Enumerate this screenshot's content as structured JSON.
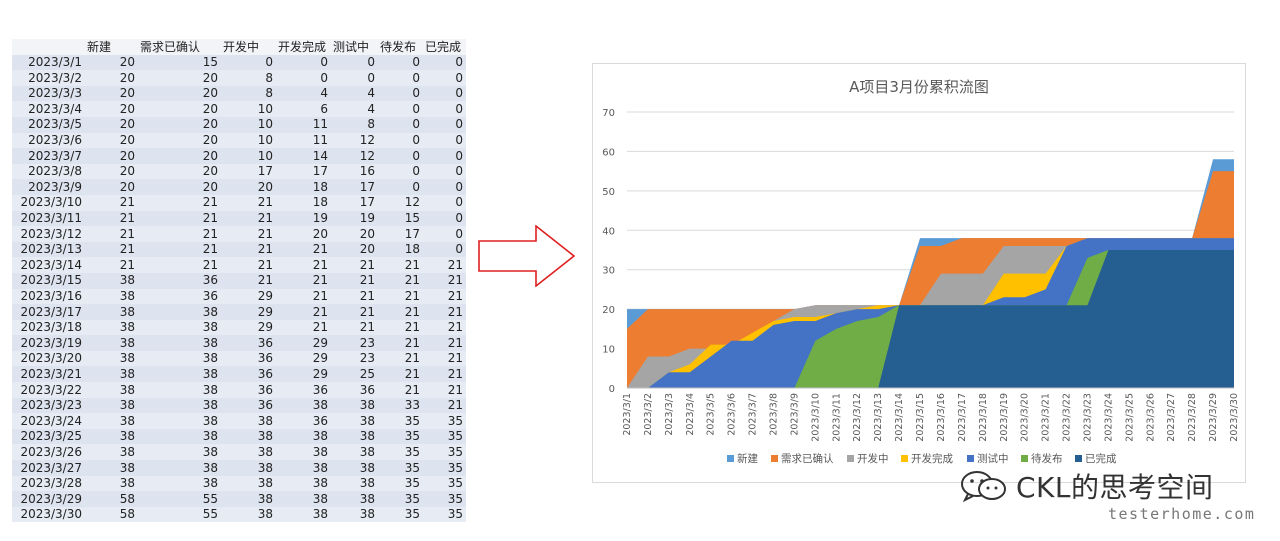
{
  "table": {
    "headers": [
      "",
      "新建",
      "需求已确认",
      "开发中",
      "开发完成",
      "测试中",
      "待发布",
      "已完成"
    ],
    "rows": [
      [
        "2023/3/1",
        "20",
        "15",
        "0",
        "0",
        "0",
        "0",
        "0"
      ],
      [
        "2023/3/2",
        "20",
        "20",
        "8",
        "0",
        "0",
        "0",
        "0"
      ],
      [
        "2023/3/3",
        "20",
        "20",
        "8",
        "4",
        "4",
        "0",
        "0"
      ],
      [
        "2023/3/4",
        "20",
        "20",
        "10",
        "6",
        "4",
        "0",
        "0"
      ],
      [
        "2023/3/5",
        "20",
        "20",
        "10",
        "11",
        "8",
        "0",
        "0"
      ],
      [
        "2023/3/6",
        "20",
        "20",
        "10",
        "11",
        "12",
        "0",
        "0"
      ],
      [
        "2023/3/7",
        "20",
        "20",
        "10",
        "14",
        "12",
        "0",
        "0"
      ],
      [
        "2023/3/8",
        "20",
        "20",
        "17",
        "17",
        "16",
        "0",
        "0"
      ],
      [
        "2023/3/9",
        "20",
        "20",
        "20",
        "18",
        "17",
        "0",
        "0"
      ],
      [
        "2023/3/10",
        "21",
        "21",
        "21",
        "18",
        "17",
        "12",
        "0"
      ],
      [
        "2023/3/11",
        "21",
        "21",
        "21",
        "19",
        "19",
        "15",
        "0"
      ],
      [
        "2023/3/12",
        "21",
        "21",
        "21",
        "20",
        "20",
        "17",
        "0"
      ],
      [
        "2023/3/13",
        "21",
        "21",
        "21",
        "21",
        "20",
        "18",
        "0"
      ],
      [
        "2023/3/14",
        "21",
        "21",
        "21",
        "21",
        "21",
        "21",
        "21"
      ],
      [
        "2023/3/15",
        "38",
        "36",
        "21",
        "21",
        "21",
        "21",
        "21"
      ],
      [
        "2023/3/16",
        "38",
        "36",
        "29",
        "21",
        "21",
        "21",
        "21"
      ],
      [
        "2023/3/17",
        "38",
        "38",
        "29",
        "21",
        "21",
        "21",
        "21"
      ],
      [
        "2023/3/18",
        "38",
        "38",
        "29",
        "21",
        "21",
        "21",
        "21"
      ],
      [
        "2023/3/19",
        "38",
        "38",
        "36",
        "29",
        "23",
        "21",
        "21"
      ],
      [
        "2023/3/20",
        "38",
        "38",
        "36",
        "29",
        "23",
        "21",
        "21"
      ],
      [
        "2023/3/21",
        "38",
        "38",
        "36",
        "29",
        "25",
        "21",
        "21"
      ],
      [
        "2023/3/22",
        "38",
        "38",
        "36",
        "36",
        "36",
        "21",
        "21"
      ],
      [
        "2023/3/23",
        "38",
        "38",
        "36",
        "38",
        "38",
        "33",
        "21"
      ],
      [
        "2023/3/24",
        "38",
        "38",
        "38",
        "36",
        "38",
        "35",
        "35"
      ],
      [
        "2023/3/25",
        "38",
        "38",
        "38",
        "38",
        "38",
        "35",
        "35"
      ],
      [
        "2023/3/26",
        "38",
        "38",
        "38",
        "38",
        "38",
        "35",
        "35"
      ],
      [
        "2023/3/27",
        "38",
        "38",
        "38",
        "38",
        "38",
        "35",
        "35"
      ],
      [
        "2023/3/28",
        "38",
        "38",
        "38",
        "38",
        "38",
        "35",
        "35"
      ],
      [
        "2023/3/29",
        "58",
        "55",
        "38",
        "38",
        "38",
        "35",
        "35"
      ],
      [
        "2023/3/30",
        "58",
        "55",
        "38",
        "38",
        "38",
        "35",
        "35"
      ]
    ]
  },
  "chart_data": {
    "type": "area",
    "title": "A项目3月份累积流图",
    "xlabel": "",
    "ylabel": "",
    "ylim": [
      0,
      70
    ],
    "yticks": [
      0,
      10,
      20,
      30,
      40,
      50,
      60,
      70
    ],
    "grid": true,
    "legend_position": "bottom",
    "categories": [
      "2023/3/1",
      "2023/3/2",
      "2023/3/3",
      "2023/3/4",
      "2023/3/5",
      "2023/3/6",
      "2023/3/7",
      "2023/3/8",
      "2023/3/9",
      "2023/3/10",
      "2023/3/11",
      "2023/3/12",
      "2023/3/13",
      "2023/3/14",
      "2023/3/15",
      "2023/3/16",
      "2023/3/17",
      "2023/3/18",
      "2023/3/19",
      "2023/3/20",
      "2023/3/21",
      "2023/3/22",
      "2023/3/23",
      "2023/3/24",
      "2023/3/25",
      "2023/3/26",
      "2023/3/27",
      "2023/3/28",
      "2023/3/29",
      "2023/3/30"
    ],
    "series": [
      {
        "name": "新建",
        "color": "#5b9bd5",
        "values": [
          20,
          20,
          20,
          20,
          20,
          20,
          20,
          20,
          20,
          21,
          21,
          21,
          21,
          21,
          38,
          38,
          38,
          38,
          38,
          38,
          38,
          38,
          38,
          38,
          38,
          38,
          38,
          38,
          58,
          58
        ]
      },
      {
        "name": "需求已确认",
        "color": "#ed7d31",
        "values": [
          15,
          20,
          20,
          20,
          20,
          20,
          20,
          20,
          20,
          21,
          21,
          21,
          21,
          21,
          36,
          36,
          38,
          38,
          38,
          38,
          38,
          38,
          38,
          38,
          38,
          38,
          38,
          38,
          55,
          55
        ]
      },
      {
        "name": "开发中",
        "color": "#a5a5a5",
        "values": [
          0,
          8,
          8,
          10,
          10,
          10,
          10,
          17,
          20,
          21,
          21,
          21,
          21,
          21,
          21,
          29,
          29,
          29,
          36,
          36,
          36,
          36,
          36,
          38,
          38,
          38,
          38,
          38,
          38,
          38
        ]
      },
      {
        "name": "开发完成",
        "color": "#ffc000",
        "values": [
          0,
          0,
          4,
          6,
          11,
          11,
          14,
          17,
          18,
          18,
          19,
          20,
          21,
          21,
          21,
          21,
          21,
          21,
          29,
          29,
          29,
          36,
          38,
          36,
          38,
          38,
          38,
          38,
          38,
          38
        ]
      },
      {
        "name": "测试中",
        "color": "#4472c4",
        "values": [
          0,
          0,
          4,
          4,
          8,
          12,
          12,
          16,
          17,
          17,
          19,
          20,
          20,
          21,
          21,
          21,
          21,
          21,
          23,
          23,
          25,
          36,
          38,
          38,
          38,
          38,
          38,
          38,
          38,
          38
        ]
      },
      {
        "name": "待发布",
        "color": "#70ad47",
        "values": [
          0,
          0,
          0,
          0,
          0,
          0,
          0,
          0,
          0,
          12,
          15,
          17,
          18,
          21,
          21,
          21,
          21,
          21,
          21,
          21,
          21,
          21,
          33,
          35,
          35,
          35,
          35,
          35,
          35,
          35
        ]
      },
      {
        "name": "已完成",
        "color": "#255e91",
        "values": [
          0,
          0,
          0,
          0,
          0,
          0,
          0,
          0,
          0,
          0,
          0,
          0,
          0,
          21,
          21,
          21,
          21,
          21,
          21,
          21,
          21,
          21,
          21,
          35,
          35,
          35,
          35,
          35,
          35,
          35
        ]
      }
    ]
  },
  "watermark": {
    "brand": "CKL的思考空间",
    "site": "testerhome.com"
  },
  "icons": {
    "arrow": "right-arrow-icon",
    "brand_logo": "wechat-icon"
  }
}
